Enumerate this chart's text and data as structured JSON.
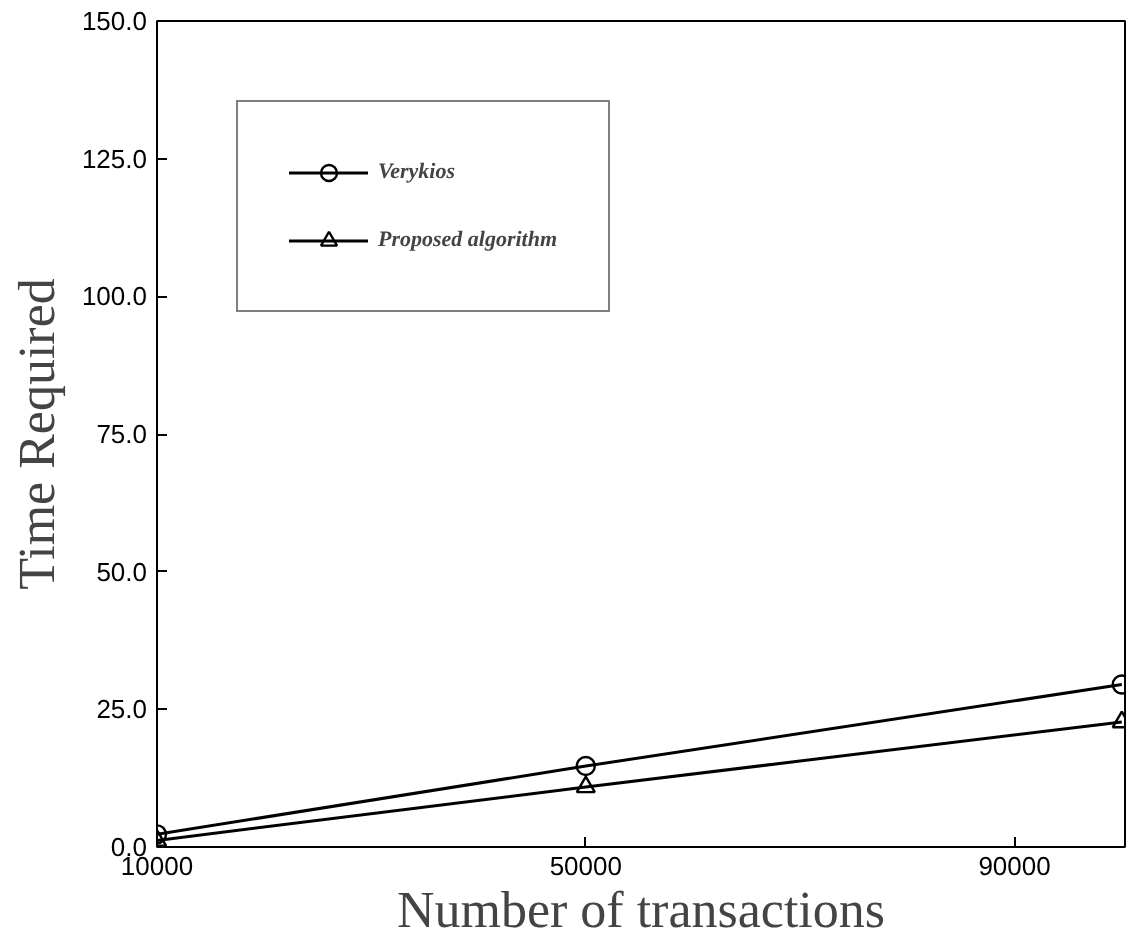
{
  "chart_data": {
    "type": "line",
    "xlabel": "Number of transactions",
    "ylabel": "Time Required",
    "x": [
      10000,
      50000,
      100000
    ],
    "series": [
      {
        "name": "Verykios",
        "color": "#000000",
        "marker": "circle",
        "values": [
          2.3,
          14.7,
          29.5
        ]
      },
      {
        "name": "Proposed algorithm",
        "color": "#000000",
        "marker": "triangle",
        "values": [
          1.2,
          10.9,
          22.7
        ]
      }
    ],
    "xlim": [
      10000,
      100300
    ],
    "xticks": [
      10000,
      50000,
      90000
    ],
    "ylim": [
      0,
      150
    ],
    "yticks": [
      {
        "value": 0,
        "label": "0.0"
      },
      {
        "value": 25,
        "label": "25.0"
      },
      {
        "value": 50,
        "label": "50.0"
      },
      {
        "value": 75,
        "label": "75.0"
      },
      {
        "value": 100,
        "label": "100.0"
      },
      {
        "value": 125,
        "label": "125.0"
      },
      {
        "value": 150,
        "label": "150.0"
      }
    ],
    "grid": false,
    "legend": "top left",
    "line_style": "solid"
  }
}
